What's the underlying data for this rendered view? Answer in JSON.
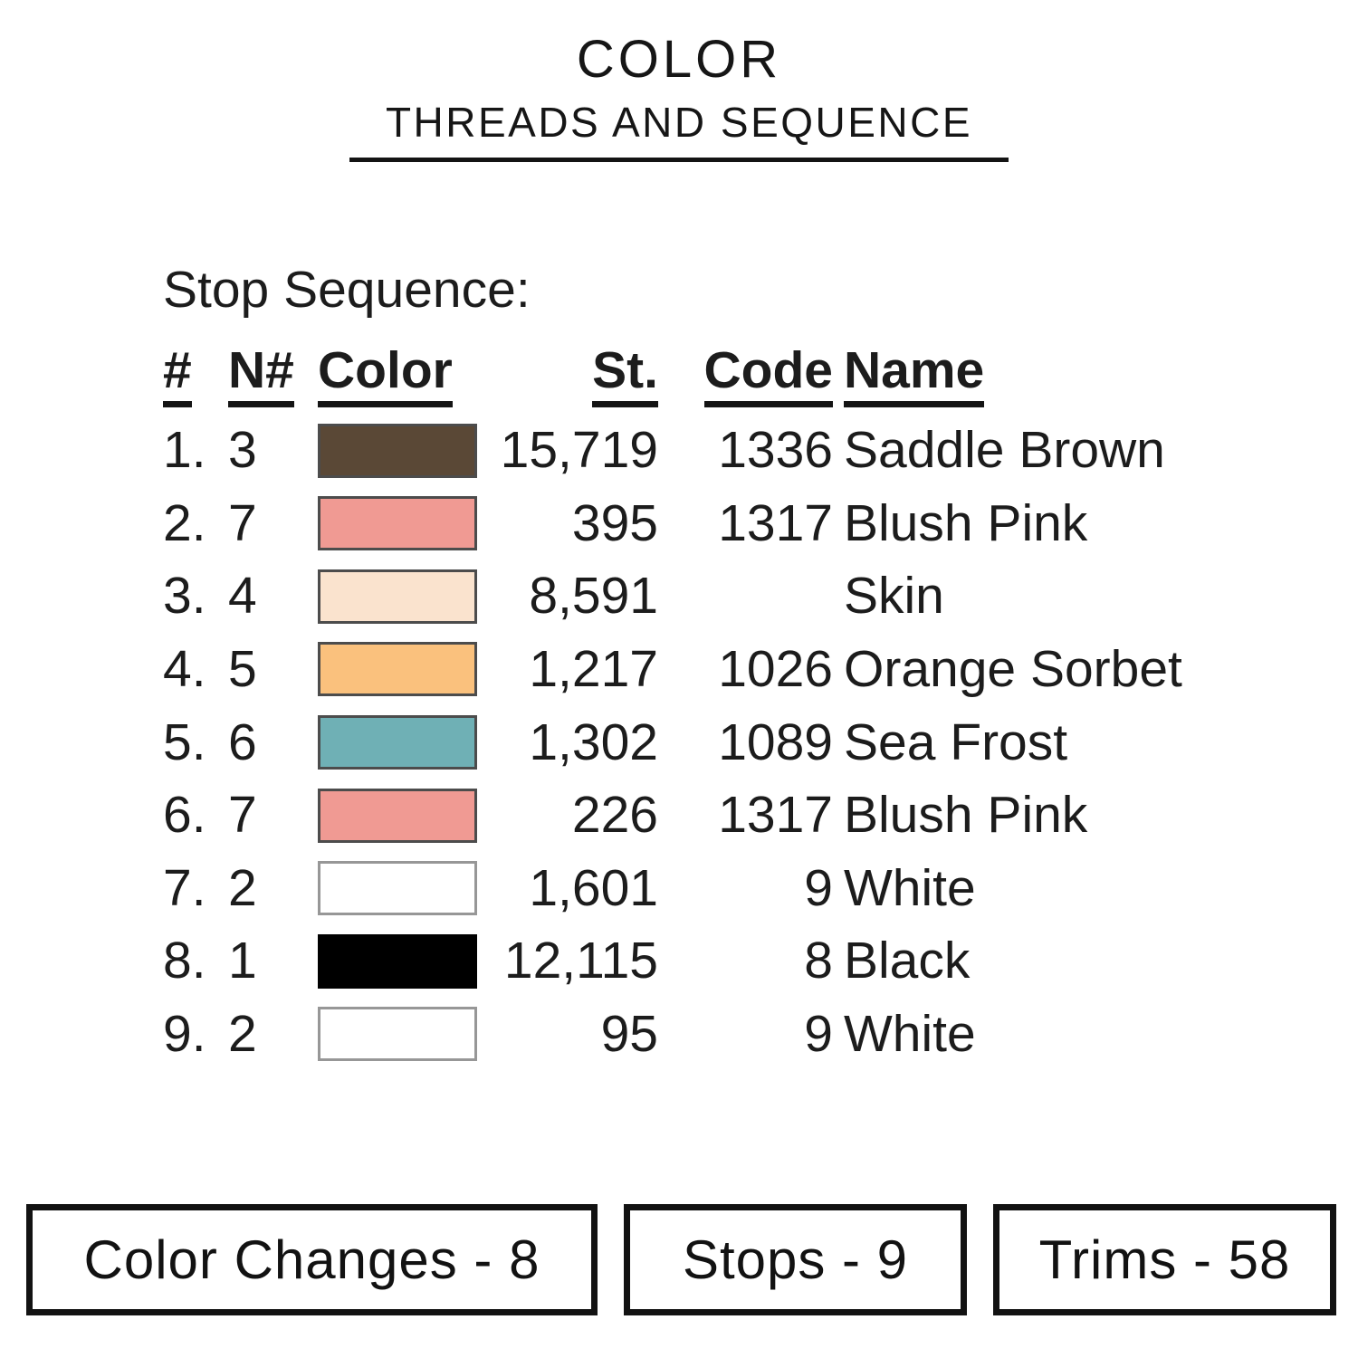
{
  "title": {
    "line1": "COLOR",
    "line2": "THREADS AND SEQUENCE"
  },
  "section_heading": "Stop Sequence:",
  "table": {
    "headers": [
      "#",
      "N#",
      "Color",
      "St.",
      "Code",
      "Name"
    ],
    "rows": [
      {
        "stop": "1.",
        "needle": "3",
        "thread_color": "#5a4836",
        "stitches": "15,719",
        "code": "1336",
        "name": "Saddle Brown"
      },
      {
        "stop": "2.",
        "needle": "7",
        "thread_color": "#f09a93",
        "stitches": "395",
        "code": "1317",
        "name": "Blush Pink"
      },
      {
        "stop": "3.",
        "needle": "4",
        "thread_color": "#fae3ce",
        "stitches": "8,591",
        "code": "",
        "name": "Skin"
      },
      {
        "stop": "4.",
        "needle": "5",
        "thread_color": "#fac17d",
        "stitches": "1,217",
        "code": "1026",
        "name": "Orange Sorbet"
      },
      {
        "stop": "5.",
        "needle": "6",
        "thread_color": "#6fb0b5",
        "stitches": "1,302",
        "code": "1089",
        "name": "Sea Frost"
      },
      {
        "stop": "6.",
        "needle": "7",
        "thread_color": "#f09a93",
        "stitches": "226",
        "code": "1317",
        "name": "Blush Pink"
      },
      {
        "stop": "7.",
        "needle": "2",
        "thread_color": "#ffffff",
        "stitches": "1,601",
        "code": "9",
        "name": "White"
      },
      {
        "stop": "8.",
        "needle": "1",
        "thread_color": "#000000",
        "stitches": "12,115",
        "code": "8",
        "name": "Black"
      },
      {
        "stop": "9.",
        "needle": "2",
        "thread_color": "#ffffff",
        "stitches": "95",
        "code": "9",
        "name": "White"
      }
    ]
  },
  "footer": {
    "boxes": [
      {
        "label": "Color Changes - 8"
      },
      {
        "label": "Stops - 9"
      },
      {
        "label": "Trims - 58"
      }
    ]
  }
}
